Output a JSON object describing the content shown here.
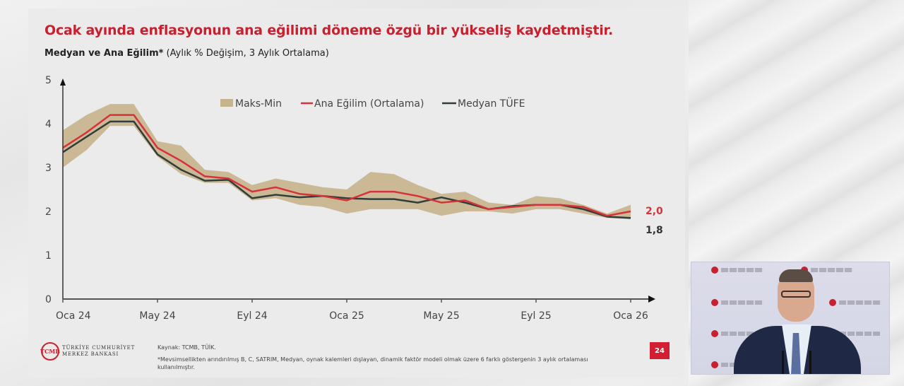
{
  "slide": {
    "title": "Ocak ayında enflasyonun ana eğilimi döneme özgü bir yükseliş kaydetmiştir.",
    "subtitle_bold": "Medyan ve Ana Eğilim*",
    "subtitle_rest": " (Aylık % Değişim, 3 Aylık Ortalama)",
    "source": "Kaynak: TCMB, TÜİK.",
    "footnote": "*Mevsimsellikten arındırılmış B, C, SATRIM, Medyan, oynak kalemleri dışlayan, dinamik faktör modeli olmak üzere 6 farklı göstergenin 3 aylık ortalaması kullanılmıştır.",
    "page_number": "24",
    "logo": {
      "mark": "TCMB",
      "line1": "TÜRKİYE CUMHURİYET",
      "line2": "MERKEZ BANKASI"
    }
  },
  "colors": {
    "title": "#c8202e",
    "band": "#c8b48c",
    "ana_egilim": "#d6323c",
    "medyan": "#2f3e3a",
    "page_badge": "#d21f32"
  },
  "legend": {
    "band": "Maks-Min",
    "red": "Ana Eğilim (Ortalama)",
    "dark": "Medyan TÜFE"
  },
  "end_labels": {
    "ana_egilim": "2,0",
    "medyan": "1,8"
  },
  "chart_data": {
    "type": "line",
    "title": "Medyan ve Ana Eğilim* (Aylık % Değişim, 3 Aylık Ortalama)",
    "xlabel": "",
    "ylabel": "",
    "ylim": [
      0,
      5
    ],
    "yticks": [
      0,
      1,
      2,
      3,
      4,
      5
    ],
    "xtick_labels": [
      "Oca 24",
      "May 24",
      "Eyl 24",
      "Oca 25",
      "May 25",
      "Eyl 25",
      "Oca 26"
    ],
    "grid": false,
    "legend_position": "top-center",
    "x": [
      "Oca 24",
      "Şub 24",
      "Mar 24",
      "Nis 24",
      "May 24",
      "Haz 24",
      "Tem 24",
      "Ağu 24",
      "Eyl 24",
      "Eki 24",
      "Kas 24",
      "Ara 24",
      "Oca 25",
      "Şub 25",
      "Mar 25",
      "Nis 25",
      "May 25",
      "Haz 25",
      "Tem 25",
      "Ağu 25",
      "Eyl 25",
      "Eki 25",
      "Kas 25",
      "Ara 25",
      "Oca 26"
    ],
    "series": [
      {
        "name": "Ana Eğilim (Ortalama)",
        "values": [
          3.45,
          3.8,
          4.2,
          4.2,
          3.45,
          3.15,
          2.8,
          2.75,
          2.45,
          2.55,
          2.4,
          2.35,
          2.25,
          2.45,
          2.45,
          2.35,
          2.2,
          2.25,
          2.05,
          2.1,
          2.15,
          2.15,
          2.1,
          1.9,
          2.0
        ]
      },
      {
        "name": "Medyan TÜFE",
        "values": [
          3.35,
          3.7,
          4.05,
          4.05,
          3.3,
          2.95,
          2.7,
          2.72,
          2.3,
          2.38,
          2.32,
          2.35,
          2.3,
          2.28,
          2.28,
          2.2,
          2.32,
          2.2,
          2.05,
          2.12,
          2.15,
          2.15,
          2.05,
          1.88,
          1.85
        ]
      },
      {
        "name": "Maks",
        "values": [
          3.85,
          4.2,
          4.45,
          4.45,
          3.6,
          3.5,
          2.95,
          2.9,
          2.6,
          2.75,
          2.65,
          2.55,
          2.5,
          2.9,
          2.85,
          2.6,
          2.4,
          2.45,
          2.2,
          2.15,
          2.35,
          2.3,
          2.15,
          1.95,
          2.15
        ]
      },
      {
        "name": "Min",
        "values": [
          3.0,
          3.4,
          3.95,
          3.95,
          3.25,
          2.85,
          2.65,
          2.65,
          2.25,
          2.3,
          2.15,
          2.1,
          1.95,
          2.05,
          2.05,
          2.05,
          1.9,
          2.0,
          2.0,
          1.95,
          2.05,
          2.05,
          1.95,
          1.85,
          1.82
        ]
      }
    ],
    "annotations": [
      {
        "series": "Ana Eğilim (Ortalama)",
        "x": "Oca 26",
        "text": "2,0"
      },
      {
        "series": "Medyan TÜFE",
        "x": "Oca 26",
        "text": "1,8"
      }
    ]
  }
}
